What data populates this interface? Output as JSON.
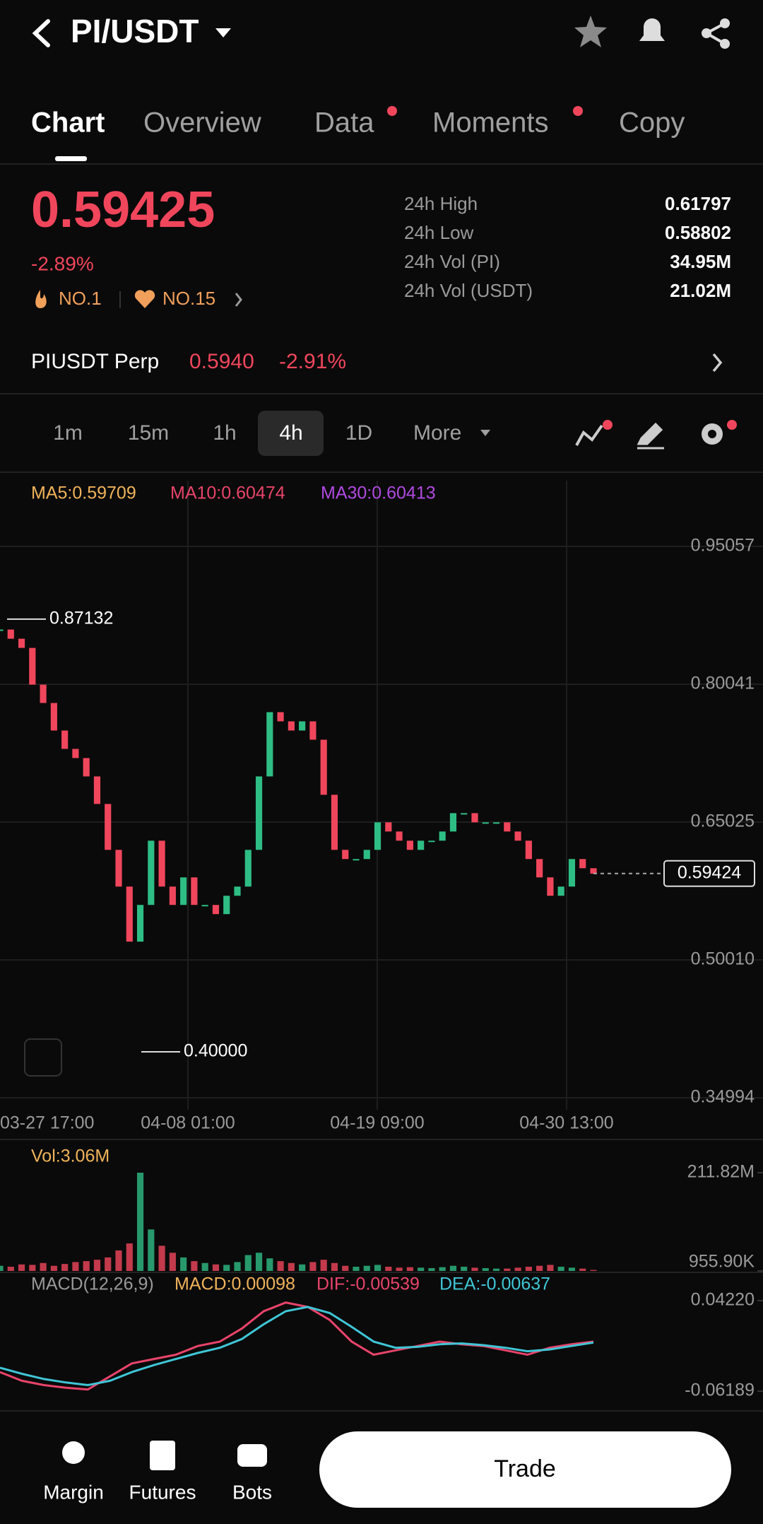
{
  "header": {
    "title": "PI/USDT"
  },
  "tabs": [
    "Chart",
    "Overview",
    "Data",
    "Moments",
    "Copy"
  ],
  "ticker": {
    "price": "0.59425",
    "change": "-2.89%",
    "rank1": "NO.1",
    "rank2": "NO.15",
    "stats": [
      {
        "label": "24h High",
        "value": "0.61797"
      },
      {
        "label": "24h Low",
        "value": "0.58802"
      },
      {
        "label": "24h Vol (PI)",
        "value": "34.95M"
      },
      {
        "label": "24h Vol (USDT)",
        "value": "21.02M"
      }
    ]
  },
  "perp": {
    "name": "PIUSDT Perp",
    "price": "0.5940",
    "change": "-2.91%"
  },
  "intervals": [
    "1m",
    "15m",
    "1h",
    "4h",
    "1D",
    "More"
  ],
  "nav": [
    "Margin",
    "Futures",
    "Bots"
  ],
  "trade_button": "Trade",
  "chart_data": [
    {
      "type": "candlestick",
      "legend": [
        "MA5:0.59709",
        "MA10:0.60474",
        "MA30:0.60413"
      ],
      "up_color": "#2ebd85",
      "down_color": "#f0465c",
      "ylim": [
        0.34994,
        0.95057
      ],
      "yticks": [
        {
          "value": 0.95057,
          "label": "0.95057"
        },
        {
          "value": 0.80041,
          "label": "0.80041"
        },
        {
          "value": 0.65025,
          "label": "0.65025"
        },
        {
          "value": 0.5001,
          "label": "0.50010"
        },
        {
          "value": 0.34994,
          "label": "0.34994"
        }
      ],
      "xlabels": [
        "03-27 17:00",
        "04-08 01:00",
        "04-19 09:00",
        "04-30 13:00"
      ],
      "annotations": [
        {
          "value": 0.87132,
          "label": "0.87132"
        },
        {
          "value": 0.4,
          "label": "0.40000"
        }
      ],
      "last_price": {
        "value": 0.59424,
        "label": "0.59424"
      },
      "values": [
        0.86,
        0.85,
        0.84,
        0.8,
        0.78,
        0.75,
        0.73,
        0.72,
        0.7,
        0.67,
        0.62,
        0.58,
        0.52,
        0.56,
        0.63,
        0.58,
        0.56,
        0.59,
        0.56,
        0.56,
        0.55,
        0.57,
        0.58,
        0.62,
        0.7,
        0.77,
        0.76,
        0.75,
        0.76,
        0.74,
        0.68,
        0.62,
        0.61,
        0.61,
        0.62,
        0.65,
        0.64,
        0.63,
        0.62,
        0.63,
        0.63,
        0.64,
        0.66,
        0.66,
        0.65,
        0.65,
        0.65,
        0.64,
        0.63,
        0.61,
        0.59,
        0.57,
        0.58,
        0.61,
        0.6,
        0.594
      ]
    },
    {
      "type": "bar",
      "title": "Vol:3.06M",
      "ylim": [
        0.9559,
        211.82
      ],
      "yticks": [
        {
          "value": 211.82,
          "label": "211.82M"
        },
        {
          "value": 0.9559,
          "label": "955.90K"
        }
      ],
      "values": [
        12,
        10,
        15,
        14,
        18,
        12,
        16,
        20,
        22,
        25,
        30,
        45,
        60,
        211.82,
        90,
        55,
        40,
        30,
        22,
        18,
        15,
        14,
        20,
        35,
        40,
        28,
        22,
        18,
        15,
        20,
        25,
        18,
        12,
        10,
        12,
        14,
        10,
        8,
        9,
        8,
        7,
        9,
        12,
        10,
        8,
        7,
        6,
        6,
        8,
        10,
        12,
        14,
        10,
        8,
        6,
        3.06
      ]
    },
    {
      "type": "line",
      "title": "MACD(12,26,9)",
      "legend": [
        "MACD:0.00098",
        "DIF:-0.00539",
        "DEA:-0.00637"
      ],
      "ylim": [
        -0.06189,
        0.0422
      ],
      "yticks": [
        {
          "value": 0.0422,
          "label": "0.04220"
        },
        {
          "value": -0.06189,
          "label": "-0.06189"
        }
      ],
      "series": [
        {
          "color": "#e8446b",
          "values": [
            -0.04,
            -0.05,
            -0.055,
            -0.058,
            -0.06,
            -0.045,
            -0.03,
            -0.025,
            -0.02,
            -0.01,
            -0.005,
            0.01,
            0.03,
            0.04,
            0.035,
            0.02,
            -0.005,
            -0.02,
            -0.015,
            -0.01,
            -0.005,
            -0.008,
            -0.01,
            -0.015,
            -0.02,
            -0.012,
            -0.008,
            -0.005
          ]
        },
        {
          "color": "#3fc6d6",
          "values": [
            -0.035,
            -0.042,
            -0.048,
            -0.052,
            -0.055,
            -0.05,
            -0.04,
            -0.032,
            -0.025,
            -0.018,
            -0.012,
            -0.002,
            0.015,
            0.03,
            0.035,
            0.028,
            0.012,
            -0.005,
            -0.012,
            -0.011,
            -0.008,
            -0.007,
            -0.009,
            -0.012,
            -0.016,
            -0.014,
            -0.01,
            -0.006
          ]
        }
      ]
    }
  ]
}
